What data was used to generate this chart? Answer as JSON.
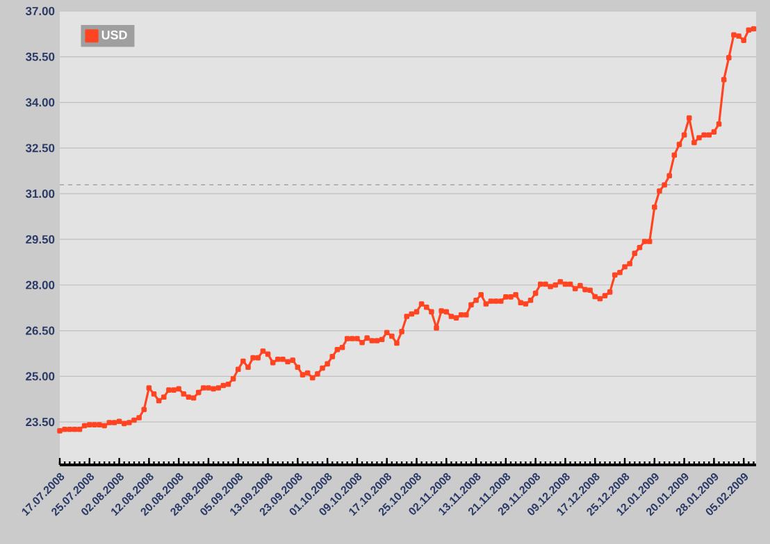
{
  "chart_data": {
    "type": "line",
    "categories": [
      "17.07.2008",
      null,
      null,
      null,
      null,
      null,
      "25.07.2008",
      null,
      null,
      null,
      null,
      null,
      "02.08.2008",
      null,
      null,
      null,
      null,
      null,
      "12.08.2008",
      null,
      null,
      null,
      null,
      null,
      "20.08.2008",
      null,
      null,
      null,
      null,
      null,
      "28.08.2008",
      null,
      null,
      null,
      null,
      null,
      "05.09.2008",
      null,
      null,
      null,
      null,
      null,
      "13.09.2008",
      null,
      null,
      null,
      null,
      null,
      "23.09.2008",
      null,
      null,
      null,
      null,
      null,
      "01.10.2008",
      null,
      null,
      null,
      null,
      null,
      "09.10.2008",
      null,
      null,
      null,
      null,
      null,
      "17.10.2008",
      null,
      null,
      null,
      null,
      null,
      "25.10.2008",
      null,
      null,
      null,
      null,
      null,
      "02.11.2008",
      null,
      null,
      null,
      null,
      null,
      "13.11.2008",
      null,
      null,
      null,
      null,
      null,
      "21.11.2008",
      null,
      null,
      null,
      null,
      null,
      "29.11.2008",
      null,
      null,
      null,
      null,
      null,
      "09.12.2008",
      null,
      null,
      null,
      null,
      null,
      "17.12.2008",
      null,
      null,
      null,
      null,
      null,
      "25.12.2008",
      null,
      null,
      null,
      null,
      null,
      "12.01.2009",
      null,
      null,
      null,
      null,
      null,
      "20.01.2009",
      null,
      null,
      null,
      null,
      null,
      "28.01.2009",
      null,
      null,
      null,
      null,
      null,
      "05.02.2009",
      null,
      null
    ],
    "series": [
      {
        "name": "USD",
        "color": "#ff4422",
        "values": [
          23.21,
          23.26,
          23.26,
          23.26,
          23.26,
          23.38,
          23.41,
          23.41,
          23.41,
          23.38,
          23.48,
          23.48,
          23.52,
          23.45,
          23.48,
          23.56,
          23.64,
          23.91,
          24.62,
          24.42,
          24.2,
          24.32,
          24.55,
          24.55,
          24.59,
          24.42,
          24.32,
          24.29,
          24.47,
          24.62,
          24.62,
          24.59,
          24.62,
          24.7,
          24.74,
          24.92,
          25.23,
          25.5,
          25.3,
          25.61,
          25.61,
          25.83,
          25.73,
          25.45,
          25.56,
          25.56,
          25.48,
          25.53,
          25.3,
          25.05,
          25.11,
          24.95,
          25.08,
          25.27,
          25.41,
          25.65,
          25.88,
          25.95,
          26.24,
          26.24,
          26.24,
          26.11,
          26.26,
          26.17,
          26.17,
          26.21,
          26.44,
          26.32,
          26.09,
          26.47,
          26.97,
          27.05,
          27.12,
          27.38,
          27.27,
          27.12,
          26.59,
          27.15,
          27.12,
          26.97,
          26.92,
          27.02,
          27.02,
          27.35,
          27.5,
          27.68,
          27.38,
          27.47,
          27.47,
          27.47,
          27.61,
          27.61,
          27.68,
          27.42,
          27.38,
          27.5,
          27.73,
          28.03,
          28.03,
          27.95,
          28.0,
          28.11,
          28.03,
          28.03,
          27.88,
          27.98,
          27.85,
          27.83,
          27.62,
          27.55,
          27.65,
          27.77,
          28.33,
          28.41,
          28.6,
          28.7,
          29.04,
          29.23,
          29.43,
          29.43,
          30.56,
          31.09,
          31.29,
          31.59,
          32.27,
          32.62,
          32.93,
          33.49,
          32.68,
          32.84,
          32.93,
          32.93,
          33.03,
          33.29,
          34.75,
          35.47,
          36.22,
          36.18,
          36.04,
          36.38,
          36.42
        ]
      }
    ],
    "ylim": [
      22.09,
      37
    ],
    "yticks": [
      {
        "value": 23.5,
        "label": "23.50"
      },
      {
        "value": 25,
        "label": "25.00"
      },
      {
        "value": 26.5,
        "label": "26.50"
      },
      {
        "value": 28,
        "label": "28.00"
      },
      {
        "value": 29.5,
        "label": "29.50"
      },
      {
        "value": 31,
        "label": "31.00"
      },
      {
        "value": 32.5,
        "label": "32.50"
      },
      {
        "value": 34,
        "label": "34.00"
      },
      {
        "value": 35.5,
        "label": "35.50"
      },
      {
        "value": 37,
        "label": "37.00"
      }
    ],
    "grid": "y",
    "legend": "top left",
    "marker": "square",
    "line_style": "solid",
    "ref_lines": [
      {
        "axis": "y",
        "value": 31.29,
        "color": "#999999",
        "line_style": "dashed"
      }
    ]
  }
}
